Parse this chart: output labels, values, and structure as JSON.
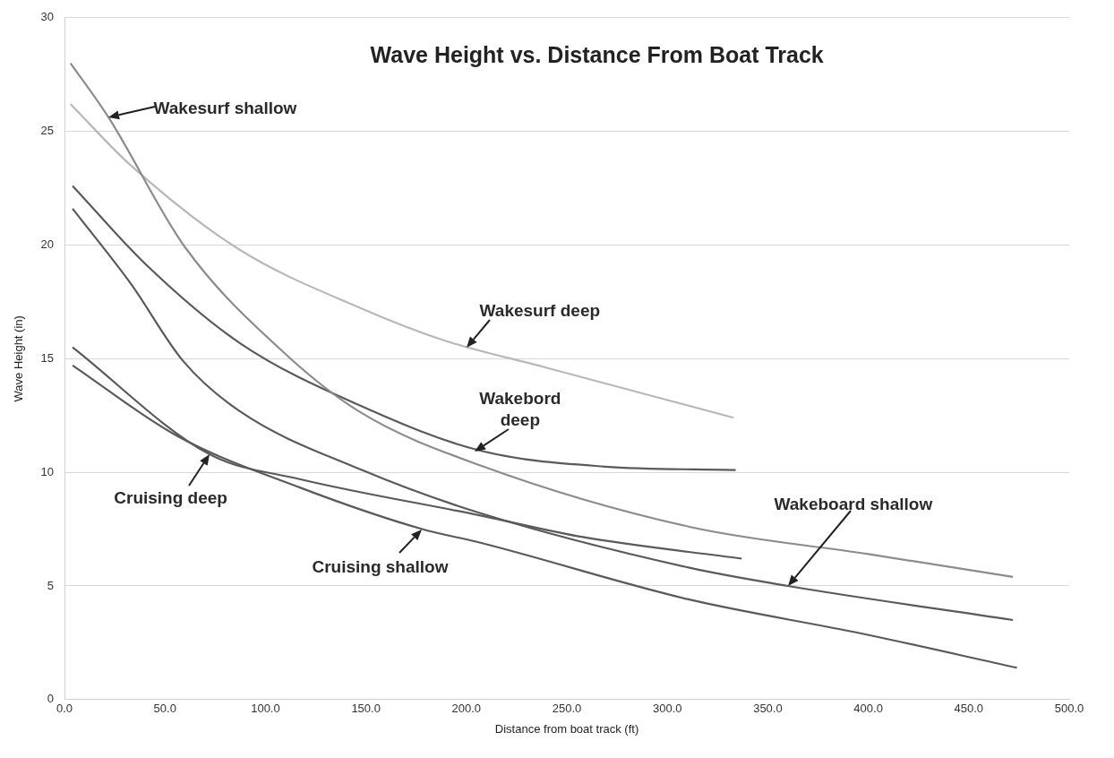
{
  "chart_data": {
    "type": "line",
    "title": "Wave Height vs. Distance From Boat Track",
    "xlabel": "Distance from boat track (ft)",
    "ylabel": "Wave Height (in)",
    "xlim": [
      0,
      500
    ],
    "xticks": [
      {
        "value": 0,
        "label": "0.0"
      },
      {
        "value": 50,
        "label": "50.0"
      },
      {
        "value": 100,
        "label": "100.0"
      },
      {
        "value": 150,
        "label": "150.0"
      },
      {
        "value": 200,
        "label": "200.0"
      },
      {
        "value": 250,
        "label": "250.0"
      },
      {
        "value": 300,
        "label": "300.0"
      },
      {
        "value": 350,
        "label": "350.0"
      },
      {
        "value": 400,
        "label": "400.0"
      },
      {
        "value": 450,
        "label": "450.0"
      },
      {
        "value": 500,
        "label": "500.0"
      }
    ],
    "ylim": [
      0,
      30
    ],
    "yticks": [
      0,
      5,
      10,
      15,
      20,
      25,
      30
    ],
    "grid": "y",
    "legend": false,
    "marker": "none",
    "line_style": "solid",
    "series": [
      {
        "color": "#8c8c8c",
        "x": [
          3,
          22,
          60,
          110,
          148,
          207,
          311,
          400,
          472
        ],
        "values": [
          28.0,
          25.6,
          19.9,
          15.2,
          12.6,
          10.3,
          7.6,
          6.4,
          5.4
        ]
      },
      {
        "color": "#b8b8b8",
        "x": [
          3,
          33,
          87,
          148,
          189,
          240,
          333
        ],
        "values": [
          26.2,
          23.5,
          19.8,
          17.2,
          15.8,
          14.6,
          12.4
        ]
      },
      {
        "color": "#5a5a5a",
        "x": [
          4,
          41,
          87,
          148,
          207,
          269,
          334
        ],
        "values": [
          22.6,
          19.1,
          15.7,
          12.9,
          10.95,
          10.25,
          10.1
        ]
      },
      {
        "color": "#5a5a5a",
        "x": [
          4,
          33,
          59,
          87,
          148,
          207,
          311,
          360,
          472
        ],
        "values": [
          21.6,
          18.3,
          14.9,
          12.7,
          10.1,
          8.2,
          5.8,
          5.0,
          3.5
        ]
      },
      {
        "color": "#5a5a5a",
        "x": [
          4,
          72,
          117,
          207,
          258,
          337
        ],
        "values": [
          15.5,
          10.8,
          9.7,
          8.1,
          7.15,
          6.2
        ]
      },
      {
        "color": "#5a5a5a",
        "x": [
          4,
          56,
          118,
          178,
          207,
          311,
          397,
          474
        ],
        "values": [
          14.7,
          11.6,
          9.3,
          7.5,
          6.9,
          4.4,
          2.9,
          1.4
        ]
      }
    ],
    "annotations": [
      {
        "text": "Wakesurf shallow",
        "x": 22,
        "y": 25.6
      },
      {
        "text": "Wakesurf deep",
        "x": 200,
        "y": 15.5
      },
      {
        "text": "Wakebord deep",
        "x": 204,
        "y": 10.9
      },
      "Wakeboard shallow",
      {
        "text": "Cruising deep",
        "x": 72,
        "y": 10.8
      },
      {
        "text": "Cruising shallow",
        "x": 178,
        "y": 7.5
      }
    ]
  }
}
